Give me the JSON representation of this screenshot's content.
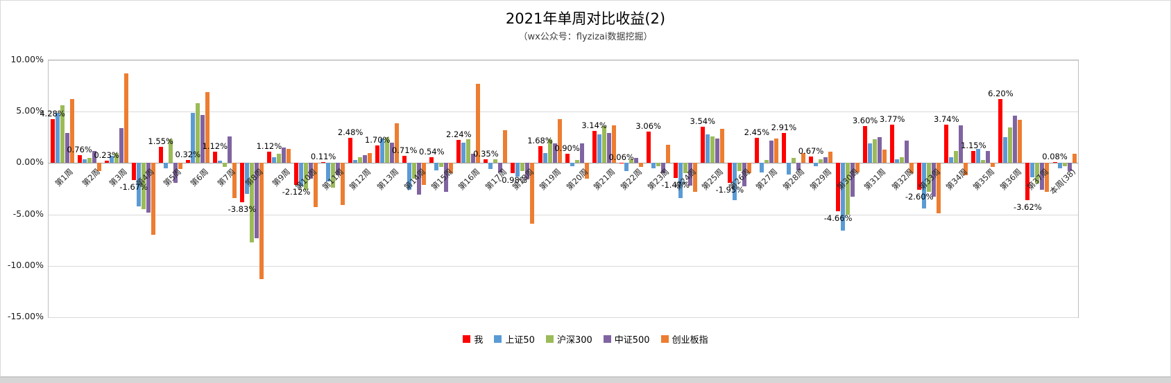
{
  "chart": {
    "title": "2021年单周对比收益(2)",
    "subtitle": "（wx公众号：flyzizai数据挖掘）"
  },
  "chart_data": {
    "type": "bar",
    "title": "2021年单周对比收益(2)",
    "subtitle": "（wx公众号：flyzizai数据挖掘）",
    "ylim": [
      -15,
      10
    ],
    "grid": true,
    "legend_position": "bottom",
    "yticks": [
      {
        "label": "10.00%",
        "value": 10
      },
      {
        "label": "5.00%",
        "value": 5
      },
      {
        "label": "0.00%",
        "value": 0
      },
      {
        "label": "-5.00%",
        "value": -5
      },
      {
        "label": "-10.00%",
        "value": -10
      },
      {
        "label": "-15.00%",
        "value": -15
      }
    ],
    "categories": [
      "第1周",
      "第2周",
      "第3周",
      "第4周",
      "第5周",
      "第6周",
      "第7周",
      "第8周",
      "第9周",
      "第10周",
      "第11周",
      "第12周",
      "第13周",
      "第14周",
      "第15周",
      "第16周",
      "第17周",
      "第18周",
      "第19周",
      "第20周",
      "第21周",
      "第22周",
      "第23周",
      "第24周",
      "第25周",
      "第26周",
      "第27周",
      "第28周",
      "第29周",
      "第30周",
      "第31周",
      "第32周",
      "第33周",
      "第34周",
      "第35周",
      "第36周",
      "第37周",
      "本周(38)"
    ],
    "series": [
      {
        "name": "我",
        "color": "#FF0000",
        "values": [
          4.28,
          0.76,
          0.23,
          -1.67,
          1.55,
          0.32,
          1.12,
          -3.83,
          1.12,
          -2.12,
          0.11,
          2.48,
          1.7,
          0.71,
          0.54,
          2.24,
          0.35,
          -0.98,
          1.68,
          0.9,
          3.14,
          0.06,
          3.06,
          -1.47,
          3.54,
          -1.95,
          2.45,
          2.91,
          0.67,
          -4.66,
          3.6,
          3.77,
          -2.6,
          3.74,
          1.15,
          6.2,
          -3.62,
          0.08
        ]
      },
      {
        "name": "上证50",
        "color": "#5B9BD5",
        "values": [
          4.9,
          0.4,
          0.7,
          -4.2,
          -0.5,
          4.9,
          0.2,
          -3.0,
          0.6,
          -2.3,
          -1.8,
          0.3,
          2.4,
          -2.6,
          -0.7,
          2.0,
          -0.6,
          -1.3,
          1.0,
          -0.3,
          2.8,
          -0.8,
          -0.5,
          -3.4,
          2.8,
          -3.6,
          -0.9,
          -1.1,
          -0.3,
          -6.6,
          1.9,
          0.4,
          -4.4,
          0.6,
          1.4,
          2.5,
          -1.4,
          -0.5
        ]
      },
      {
        "name": "沪深300",
        "color": "#9BBB59",
        "values": [
          5.6,
          0.5,
          1.0,
          -4.5,
          2.3,
          5.8,
          -0.4,
          -7.7,
          0.9,
          -2.6,
          -2.4,
          0.6,
          2.5,
          -1.5,
          -0.4,
          2.3,
          0.4,
          -0.8,
          2.3,
          0.3,
          3.6,
          0.4,
          -0.3,
          -1.0,
          2.6,
          -0.8,
          0.3,
          0.5,
          0.4,
          -5.0,
          2.3,
          0.6,
          -2.8,
          1.2,
          0.3,
          3.5,
          -2.0,
          -0.3
        ]
      },
      {
        "name": "中证500",
        "color": "#8064A2",
        "values": [
          2.9,
          1.2,
          3.4,
          -4.8,
          -1.9,
          4.7,
          2.6,
          -7.3,
          1.5,
          -1.5,
          -1.2,
          0.8,
          2.0,
          -3.1,
          -2.8,
          0.9,
          -0.9,
          -1.6,
          1.9,
          1.9,
          2.9,
          0.5,
          -1.0,
          -2.2,
          2.4,
          -2.3,
          2.2,
          -0.7,
          0.6,
          -3.3,
          2.5,
          2.2,
          -3.3,
          3.7,
          1.2,
          4.6,
          -2.6,
          -0.8
        ]
      },
      {
        "name": "创业板指",
        "color": "#ED7D31",
        "values": [
          6.2,
          -0.8,
          8.7,
          -7.0,
          -0.6,
          6.9,
          -3.4,
          -11.3,
          1.4,
          -4.3,
          -4.1,
          1.0,
          3.9,
          -2.1,
          -1.0,
          7.7,
          3.2,
          -5.9,
          4.3,
          -1.5,
          3.7,
          -0.4,
          1.8,
          -2.8,
          3.3,
          -1.0,
          2.4,
          1.0,
          1.1,
          -0.9,
          1.3,
          -1.0,
          -4.9,
          -1.2,
          -0.4,
          4.2,
          -2.8,
          0.9
        ]
      }
    ],
    "data_label_series": "我",
    "data_labels": [
      "4.28%",
      "0.76%",
      "0.23%",
      "-1.67%",
      "1.55%",
      "0.32%",
      "1.12%",
      "-3.83%",
      "1.12%",
      "-2.12%",
      "0.11%",
      "2.48%",
      "1.70%",
      "0.71%",
      "0.54%",
      "2.24%",
      "0.35%",
      "-0.98%",
      "1.68%",
      "0.90%",
      "3.14%",
      "0.06%",
      "3.06%",
      "-1.47%",
      "3.54%",
      "-1.95%",
      "2.45%",
      "2.91%",
      "0.67%",
      "-4.66%",
      "3.60%",
      "3.77%",
      "-2.60%",
      "3.74%",
      "1.15%",
      "6.20%",
      "-3.62%",
      "0.08%"
    ]
  },
  "colors": {
    "gridline": "#d9d9d9",
    "zero_line": "#9a9a9a",
    "plot_border": "#bfbfbf",
    "bottom_strip": "#d6d6d6"
  }
}
